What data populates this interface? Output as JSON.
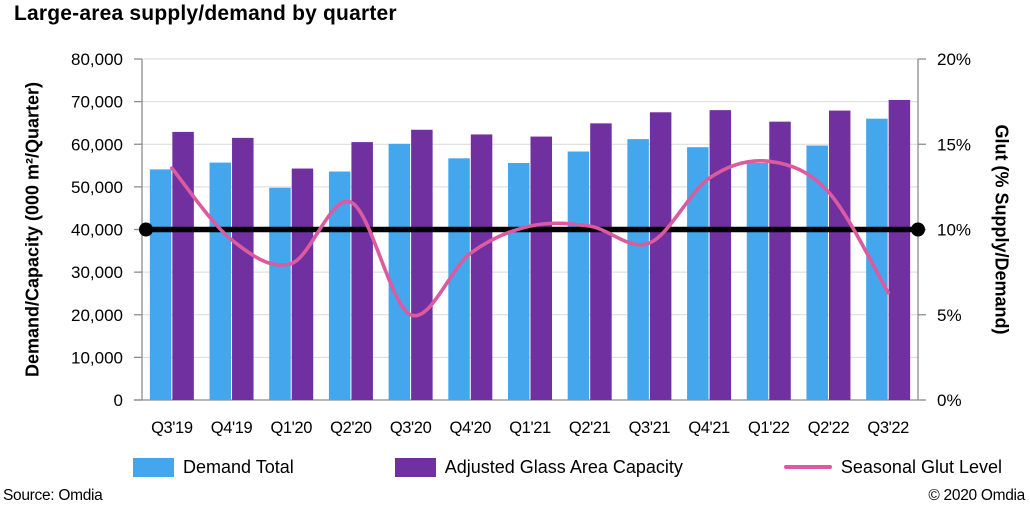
{
  "title": "Large-area supply/demand by quarter",
  "footer": {
    "source": "Source: Omdia",
    "copyright": "© 2020 Omdia"
  },
  "legend": [
    {
      "label": "Demand Total",
      "type": "bar",
      "color": "#44A6EC"
    },
    {
      "label": "Adjusted Glass Area Capacity",
      "type": "bar",
      "color": "#7030A0"
    },
    {
      "label": "Seasonal Glut Level",
      "type": "line",
      "color": "#DB5AA0"
    }
  ],
  "chart_data": {
    "type": "combo-bar-line",
    "title": "Large-area supply/demand by quarter",
    "categories": [
      "Q3'19",
      "Q4'19",
      "Q1'20",
      "Q2'20",
      "Q3'20",
      "Q4'20",
      "Q1'21",
      "Q2'21",
      "Q3'21",
      "Q4'21",
      "Q1'22",
      "Q2'22",
      "Q3'22"
    ],
    "series": [
      {
        "name": "Demand Total",
        "type": "bar",
        "axis": "left",
        "color": "#44A6EC",
        "values": [
          54100,
          55700,
          49800,
          53600,
          60100,
          56700,
          55600,
          58300,
          61200,
          59300,
          55600,
          59700,
          66000
        ]
      },
      {
        "name": "Adjusted Glass Area Capacity",
        "type": "bar",
        "axis": "left",
        "color": "#7030A0",
        "values": [
          62900,
          61500,
          54300,
          60500,
          63400,
          62300,
          61800,
          64900,
          67500,
          68000,
          65300,
          67900,
          70400
        ]
      },
      {
        "name": "Seasonal Glut Level",
        "type": "line",
        "axis": "right",
        "color": "#DB5AA0",
        "values": [
          13.6,
          9.4,
          8.0,
          11.6,
          5.0,
          8.6,
          10.2,
          10.2,
          9.2,
          13.0,
          14.0,
          12.2,
          6.3
        ]
      }
    ],
    "reference_line": {
      "left_value": 40000,
      "right_value_pct": 10,
      "color": "#000000"
    },
    "left_axis": {
      "label": "Demand/Capacity (000 m²/Quarter)",
      "min": 0,
      "max": 80000,
      "step": 10000
    },
    "right_axis": {
      "label": "Glut (% Supply/Demand)",
      "min": 0,
      "max": 20,
      "step": 5,
      "format": "percent"
    },
    "grid": true,
    "legend_position": "bottom",
    "colors": {
      "grid": "#D9D9D9",
      "axis": "#8C8C8C",
      "text": "#000000"
    }
  }
}
